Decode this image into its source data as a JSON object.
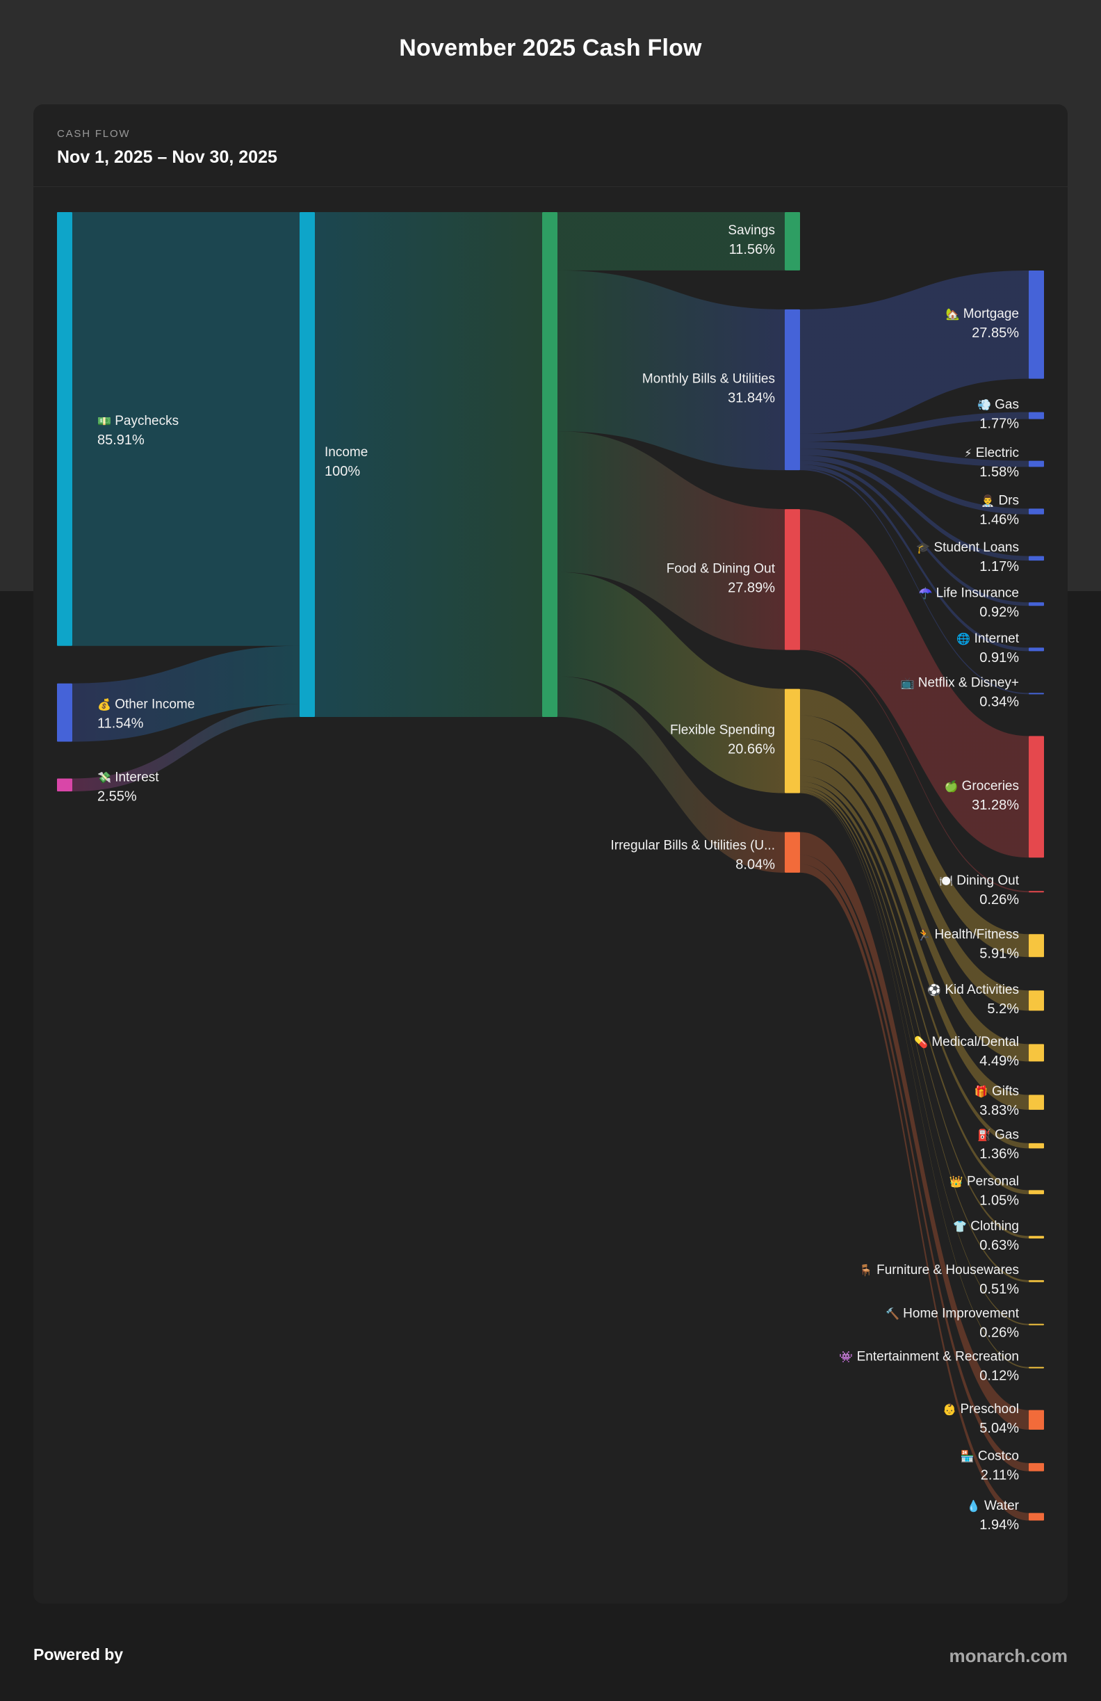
{
  "page": {
    "title": "November 2025 Cash Flow",
    "kicker": "CASH FLOW",
    "date_range": "Nov 1, 2025 – Nov 30, 2025",
    "footer_left": "Powered by",
    "footer_right": "monarch.com"
  },
  "colors": {
    "page_background": "#2d2d2d",
    "card": "#212121",
    "income": "#0ea5c9",
    "other_income": "#4563d8",
    "interest": "#d946a8",
    "savings": "#2e9e63",
    "bills": "#4563d8",
    "food": "#e5484d",
    "flexible": "#f7c53f",
    "irregular": "#f26b3a"
  },
  "chart_data": {
    "type": "sankey",
    "title": "November 2025 Cash Flow",
    "unit": "%",
    "nodes": [
      {
        "id": "paychecks",
        "label": "Paychecks",
        "value": "85.91%",
        "amount": 85.91,
        "column": 0,
        "icon": "money-bill-icon",
        "emoji": "💵",
        "color": "#0ea5c9"
      },
      {
        "id": "other_income",
        "label": "Other Income",
        "value": "11.54%",
        "amount": 11.54,
        "column": 0,
        "icon": "money-bag-icon",
        "emoji": "💰",
        "color": "#4563d8"
      },
      {
        "id": "interest",
        "label": "Interest",
        "value": "2.55%",
        "amount": 2.55,
        "column": 0,
        "icon": "money-wings-icon",
        "emoji": "💸",
        "color": "#d946a8"
      },
      {
        "id": "income_in",
        "label": "Income",
        "value": "100%",
        "amount": 100,
        "column": 1,
        "icon": "",
        "emoji": "",
        "color": "#0ea5c9"
      },
      {
        "id": "income_out",
        "label": "",
        "value": "",
        "amount": 100,
        "column": 2,
        "icon": "",
        "emoji": "",
        "color": "#2e9e63"
      },
      {
        "id": "savings",
        "label": "Savings",
        "value": "11.56%",
        "amount": 11.56,
        "column": 3,
        "icon": "",
        "emoji": "",
        "color": "#2e9e63"
      },
      {
        "id": "bills",
        "label": "Monthly Bills & Utilities",
        "value": "31.84%",
        "amount": 31.84,
        "column": 3,
        "icon": "",
        "emoji": "",
        "color": "#4563d8"
      },
      {
        "id": "food",
        "label": "Food & Dining Out",
        "value": "27.89%",
        "amount": 27.89,
        "column": 3,
        "icon": "",
        "emoji": "",
        "color": "#e5484d"
      },
      {
        "id": "flexible",
        "label": "Flexible Spending",
        "value": "20.66%",
        "amount": 20.66,
        "column": 3,
        "icon": "",
        "emoji": "",
        "color": "#f7c53f"
      },
      {
        "id": "irregular",
        "label": "Irregular Bills & Utilities (U...",
        "value": "8.04%",
        "amount": 8.04,
        "column": 3,
        "icon": "",
        "emoji": "",
        "color": "#f26b3a"
      },
      {
        "id": "mortgage",
        "label": "Mortgage",
        "value": "27.85%",
        "amount": 27.85,
        "column": 4,
        "parent": "bills",
        "icon": "house-icon",
        "emoji": "🏡",
        "color": "#4563d8"
      },
      {
        "id": "gas_util",
        "label": "Gas",
        "value": "1.77%",
        "amount": 1.77,
        "column": 4,
        "parent": "bills",
        "icon": "gas-cloud-icon",
        "emoji": "💨",
        "color": "#4563d8"
      },
      {
        "id": "electric",
        "label": "Electric",
        "value": "1.58%",
        "amount": 1.58,
        "column": 4,
        "parent": "bills",
        "icon": "lightning-icon",
        "emoji": "⚡",
        "color": "#4563d8"
      },
      {
        "id": "drs",
        "label": "Drs",
        "value": "1.46%",
        "amount": 1.46,
        "column": 4,
        "parent": "bills",
        "icon": "doctor-icon",
        "emoji": "👨‍⚕️",
        "color": "#4563d8"
      },
      {
        "id": "student_loans",
        "label": "Student Loans",
        "value": "1.17%",
        "amount": 1.17,
        "column": 4,
        "parent": "bills",
        "icon": "graduation-cap-icon",
        "emoji": "🎓",
        "color": "#4563d8"
      },
      {
        "id": "life_insurance",
        "label": "Life Insurance",
        "value": "0.92%",
        "amount": 0.92,
        "column": 4,
        "parent": "bills",
        "icon": "umbrella-icon",
        "emoji": "☂️",
        "color": "#4563d8"
      },
      {
        "id": "internet",
        "label": "Internet",
        "value": "0.91%",
        "amount": 0.91,
        "column": 4,
        "parent": "bills",
        "icon": "globe-icon",
        "emoji": "🌐",
        "color": "#4563d8"
      },
      {
        "id": "netflix",
        "label": "Netflix & Disney+",
        "value": "0.34%",
        "amount": 0.34,
        "column": 4,
        "parent": "bills",
        "icon": "tv-icon",
        "emoji": "📺",
        "color": "#4563d8"
      },
      {
        "id": "groceries",
        "label": "Groceries",
        "value": "31.28%",
        "amount": 31.28,
        "column": 4,
        "parent": "food",
        "icon": "apple-icon",
        "emoji": "🍏",
        "color": "#e5484d"
      },
      {
        "id": "dining_out",
        "label": "Dining Out",
        "value": "0.26%",
        "amount": 0.26,
        "column": 4,
        "parent": "food",
        "icon": "plate-icon",
        "emoji": "🍽️",
        "color": "#e5484d"
      },
      {
        "id": "health",
        "label": "Health/Fitness",
        "value": "5.91%",
        "amount": 5.91,
        "column": 4,
        "parent": "flexible",
        "icon": "running-icon",
        "emoji": "🏃",
        "color": "#f7c53f"
      },
      {
        "id": "kid_activities",
        "label": "Kid Activities",
        "value": "5.2%",
        "amount": 5.2,
        "column": 4,
        "parent": "flexible",
        "icon": "soccer-ball-icon",
        "emoji": "⚽",
        "color": "#f7c53f"
      },
      {
        "id": "medical",
        "label": "Medical/Dental",
        "value": "4.49%",
        "amount": 4.49,
        "column": 4,
        "parent": "flexible",
        "icon": "pill-icon",
        "emoji": "💊",
        "color": "#f7c53f"
      },
      {
        "id": "gifts",
        "label": "Gifts",
        "value": "3.83%",
        "amount": 3.83,
        "column": 4,
        "parent": "flexible",
        "icon": "gift-icon",
        "emoji": "🎁",
        "color": "#f7c53f"
      },
      {
        "id": "gas_fuel",
        "label": "Gas",
        "value": "1.36%",
        "amount": 1.36,
        "column": 4,
        "parent": "flexible",
        "icon": "fuel-pump-icon",
        "emoji": "⛽",
        "color": "#f7c53f"
      },
      {
        "id": "personal",
        "label": "Personal",
        "value": "1.05%",
        "amount": 1.05,
        "column": 4,
        "parent": "flexible",
        "icon": "crown-icon",
        "emoji": "👑",
        "color": "#f7c53f"
      },
      {
        "id": "clothing",
        "label": "Clothing",
        "value": "0.63%",
        "amount": 0.63,
        "column": 4,
        "parent": "flexible",
        "icon": "shirt-icon",
        "emoji": "👕",
        "color": "#f7c53f"
      },
      {
        "id": "furniture",
        "label": "Furniture & Housewares",
        "value": "0.51%",
        "amount": 0.51,
        "column": 4,
        "parent": "flexible",
        "icon": "chair-icon",
        "emoji": "🪑",
        "color": "#f7c53f"
      },
      {
        "id": "home_improvement",
        "label": "Home Improvement",
        "value": "0.26%",
        "amount": 0.26,
        "column": 4,
        "parent": "flexible",
        "icon": "hammer-icon",
        "emoji": "🔨",
        "color": "#f7c53f"
      },
      {
        "id": "entertainment",
        "label": "Entertainment & Recreation",
        "value": "0.12%",
        "amount": 0.12,
        "column": 4,
        "parent": "flexible",
        "icon": "game-controller-icon",
        "emoji": "👾",
        "color": "#f7c53f"
      },
      {
        "id": "preschool",
        "label": "Preschool",
        "value": "5.04%",
        "amount": 5.04,
        "column": 4,
        "parent": "irregular",
        "icon": "child-face-icon",
        "emoji": "👶",
        "color": "#f26b3a"
      },
      {
        "id": "costco",
        "label": "Costco",
        "value": "2.11%",
        "amount": 2.11,
        "column": 4,
        "parent": "irregular",
        "icon": "store-icon",
        "emoji": "🏪",
        "color": "#f26b3a"
      },
      {
        "id": "water",
        "label": "Water",
        "value": "1.94%",
        "amount": 1.94,
        "column": 4,
        "parent": "irregular",
        "icon": "water-drop-icon",
        "emoji": "💧",
        "color": "#f26b3a"
      }
    ],
    "links": [
      {
        "source": "paychecks",
        "target": "income_in",
        "value": 85.91
      },
      {
        "source": "other_income",
        "target": "income_in",
        "value": 11.54
      },
      {
        "source": "interest",
        "target": "income_in",
        "value": 2.55
      },
      {
        "source": "income_in",
        "target": "income_out",
        "value": 100
      },
      {
        "source": "income_out",
        "target": "savings",
        "value": 11.56
      },
      {
        "source": "income_out",
        "target": "bills",
        "value": 31.84
      },
      {
        "source": "income_out",
        "target": "food",
        "value": 27.89
      },
      {
        "source": "income_out",
        "target": "flexible",
        "value": 20.66
      },
      {
        "source": "income_out",
        "target": "irregular",
        "value": 8.04
      }
    ]
  }
}
